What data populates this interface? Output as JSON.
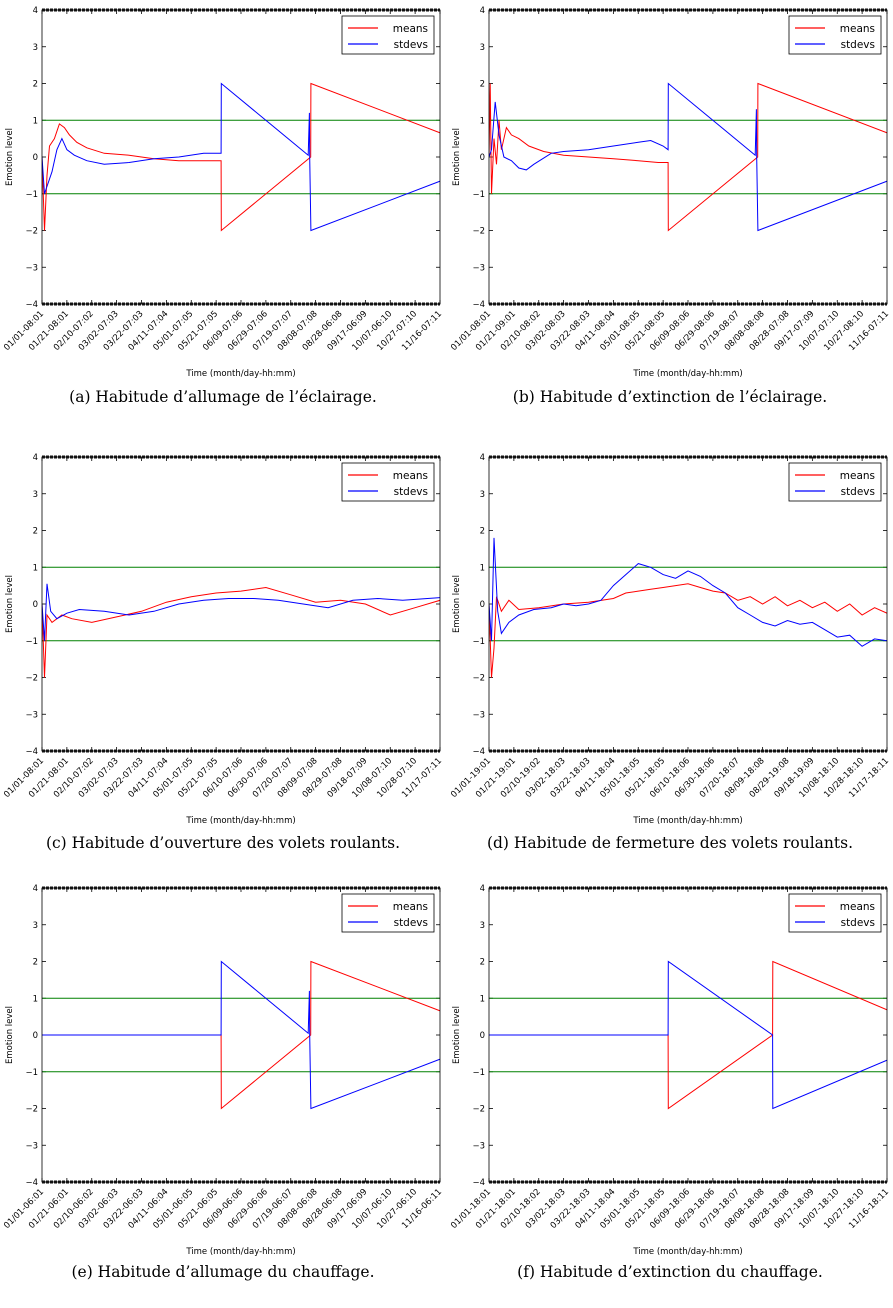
{
  "defaults": {
    "type": "line",
    "xlabel": "Time (month/day-hh:mm)",
    "ylabel": "Emotion level",
    "ylim": [
      -4,
      4
    ],
    "yticks": [
      -4,
      -3,
      -2,
      -1,
      0,
      1,
      2,
      3,
      4
    ],
    "hlines": [
      1,
      -1
    ],
    "legend": {
      "position": "top-right",
      "entries": [
        "means",
        "stdevs"
      ]
    },
    "colors": {
      "means": "#ff0000",
      "stdevs": "#0000ff",
      "hline": "#008000"
    }
  },
  "chart_data": [
    {
      "caption": "(a) Habitude d’allumage de l’éclairage.",
      "xticks": [
        "01/01-08:01",
        "01/21-08:01",
        "02/10-07:02",
        "03/02-07:03",
        "03/22-07:03",
        "04/11-07:04",
        "05/01-07:05",
        "05/21-07:05",
        "06/09-07:06",
        "06/29-07:06",
        "07/19-07:07",
        "08/08-07:08",
        "08/28-06:08",
        "09/17-06:09",
        "10/07-06:10",
        "10/27-07:10",
        "11/16-07:11"
      ],
      "series": [
        {
          "name": "means",
          "points": [
            [
              0,
              0
            ],
            [
              0.1,
              -2
            ],
            [
              0.2,
              -0.5
            ],
            [
              0.3,
              0.3
            ],
            [
              0.5,
              0.5
            ],
            [
              0.7,
              0.9
            ],
            [
              0.9,
              0.8
            ],
            [
              1.1,
              0.6
            ],
            [
              1.4,
              0.4
            ],
            [
              1.8,
              0.25
            ],
            [
              2.5,
              0.1
            ],
            [
              3.5,
              0.05
            ],
            [
              4.5,
              -0.05
            ],
            [
              5.5,
              -0.1
            ],
            [
              6.5,
              -0.1
            ],
            [
              7.2,
              -0.1
            ],
            [
              7.21,
              -2
            ],
            [
              10.8,
              0
            ],
            [
              10.81,
              2
            ],
            [
              17,
              0.4
            ]
          ]
        },
        {
          "name": "stdevs",
          "points": [
            [
              0,
              0
            ],
            [
              0.1,
              -1
            ],
            [
              0.2,
              -0.8
            ],
            [
              0.4,
              -0.4
            ],
            [
              0.6,
              0.2
            ],
            [
              0.8,
              0.5
            ],
            [
              1.0,
              0.2
            ],
            [
              1.3,
              0.05
            ],
            [
              1.8,
              -0.1
            ],
            [
              2.5,
              -0.2
            ],
            [
              3.5,
              -0.15
            ],
            [
              4.5,
              -0.05
            ],
            [
              5.5,
              0.0
            ],
            [
              6.5,
              0.1
            ],
            [
              7.2,
              0.1
            ],
            [
              7.21,
              2
            ],
            [
              10.7,
              0.05
            ],
            [
              10.75,
              1.2
            ],
            [
              10.76,
              0
            ],
            [
              10.81,
              -2
            ],
            [
              17,
              -0.4
            ]
          ]
        }
      ]
    },
    {
      "caption": "(b) Habitude d’extinction de l’éclairage.",
      "xticks": [
        "01/01-08:01",
        "01/21-09:01",
        "02/10-08:02",
        "03/02-08:03",
        "03/22-08:03",
        "04/11-08:04",
        "05/01-08:05",
        "05/21-08:05",
        "06/09-08:06",
        "06/29-08:06",
        "07/19-08:07",
        "08/08-08:08",
        "08/28-07:08",
        "09/17-07:09",
        "10/07-07:10",
        "10/27-08:10",
        "11/16-07:11"
      ],
      "series": [
        {
          "name": "means",
          "points": [
            [
              0,
              0
            ],
            [
              0.05,
              2
            ],
            [
              0.1,
              -1
            ],
            [
              0.2,
              0.5
            ],
            [
              0.3,
              -0.2
            ],
            [
              0.4,
              1
            ],
            [
              0.5,
              0.2
            ],
            [
              0.7,
              0.8
            ],
            [
              0.9,
              0.6
            ],
            [
              1.2,
              0.5
            ],
            [
              1.6,
              0.3
            ],
            [
              2.2,
              0.15
            ],
            [
              3.0,
              0.05
            ],
            [
              4.0,
              0.0
            ],
            [
              5.0,
              -0.05
            ],
            [
              6.0,
              -0.1
            ],
            [
              6.8,
              -0.15
            ],
            [
              7.2,
              -0.15
            ],
            [
              7.21,
              -2
            ],
            [
              10.8,
              0
            ],
            [
              10.81,
              2
            ],
            [
              17,
              0.4
            ]
          ]
        },
        {
          "name": "stdevs",
          "points": [
            [
              0,
              0
            ],
            [
              0.1,
              0.2
            ],
            [
              0.25,
              1.5
            ],
            [
              0.4,
              0.6
            ],
            [
              0.6,
              0.0
            ],
            [
              0.9,
              -0.1
            ],
            [
              1.2,
              -0.3
            ],
            [
              1.5,
              -0.35
            ],
            [
              1.8,
              -0.2
            ],
            [
              2.5,
              0.1
            ],
            [
              3.0,
              0.15
            ],
            [
              4.0,
              0.2
            ],
            [
              5.0,
              0.3
            ],
            [
              6.0,
              0.4
            ],
            [
              6.5,
              0.45
            ],
            [
              7.0,
              0.3
            ],
            [
              7.2,
              0.2
            ],
            [
              7.21,
              2
            ],
            [
              10.7,
              0.05
            ],
            [
              10.75,
              1.3
            ],
            [
              10.76,
              0
            ],
            [
              10.81,
              -2
            ],
            [
              17,
              -0.4
            ]
          ]
        }
      ]
    },
    {
      "caption": "(c) Habitude d’ouverture des volets roulants.",
      "xticks": [
        "01/01-08:01",
        "01/21-08:01",
        "02/10-07:02",
        "03/02-07:03",
        "03/22-07:03",
        "04/11-07:04",
        "05/01-07:05",
        "05/21-07:05",
        "06/10-07:06",
        "06/30-07:06",
        "07/20-07:07",
        "08/09-07:08",
        "08/29-07:08",
        "09/18-07:09",
        "10/08-07:10",
        "10/28-07:10",
        "11/17-07:11"
      ],
      "series": [
        {
          "name": "means",
          "points": [
            [
              0,
              0
            ],
            [
              0.1,
              -2
            ],
            [
              0.2,
              -0.3
            ],
            [
              0.4,
              -0.5
            ],
            [
              0.8,
              -0.3
            ],
            [
              1.2,
              -0.4
            ],
            [
              2,
              -0.5
            ],
            [
              3,
              -0.35
            ],
            [
              4,
              -0.2
            ],
            [
              5,
              0.05
            ],
            [
              6,
              0.2
            ],
            [
              7,
              0.3
            ],
            [
              8,
              0.35
            ],
            [
              9,
              0.45
            ],
            [
              10,
              0.25
            ],
            [
              11,
              0.05
            ],
            [
              12,
              0.1
            ],
            [
              13,
              0.0
            ],
            [
              14,
              -0.3
            ],
            [
              15,
              -0.1
            ],
            [
              16,
              0.1
            ],
            [
              17,
              0.2
            ]
          ]
        },
        {
          "name": "stdevs",
          "points": [
            [
              0,
              0
            ],
            [
              0.1,
              -1
            ],
            [
              0.2,
              0.55
            ],
            [
              0.35,
              -0.2
            ],
            [
              0.6,
              -0.4
            ],
            [
              1,
              -0.25
            ],
            [
              1.5,
              -0.15
            ],
            [
              2.5,
              -0.2
            ],
            [
              3.5,
              -0.3
            ],
            [
              4.5,
              -0.2
            ],
            [
              5.5,
              0.0
            ],
            [
              6.5,
              0.1
            ],
            [
              7.5,
              0.15
            ],
            [
              8.5,
              0.15
            ],
            [
              9.5,
              0.1
            ],
            [
              10.5,
              0.0
            ],
            [
              11.5,
              -0.1
            ],
            [
              12.5,
              0.1
            ],
            [
              13.5,
              0.15
            ],
            [
              14.5,
              0.1
            ],
            [
              15.5,
              0.15
            ],
            [
              16.5,
              0.2
            ],
            [
              17,
              0.25
            ]
          ]
        }
      ]
    },
    {
      "caption": "(d) Habitude de fermeture des volets roulants.",
      "xticks": [
        "01/01-19:01",
        "01/21-19:01",
        "02/10-19:02",
        "03/02-18:03",
        "03/22-18:03",
        "04/11-18:04",
        "05/01-18:05",
        "05/21-18:05",
        "06/10-18:06",
        "06/30-18:06",
        "07/20-18:07",
        "08/09-18:08",
        "08/29-19:08",
        "09/18-19:09",
        "10/08-18:10",
        "10/28-18:10",
        "11/17-18:11"
      ],
      "series": [
        {
          "name": "means",
          "points": [
            [
              0,
              0
            ],
            [
              0.1,
              -2
            ],
            [
              0.2,
              -1.2
            ],
            [
              0.3,
              0.2
            ],
            [
              0.5,
              -0.2
            ],
            [
              0.8,
              0.1
            ],
            [
              1.2,
              -0.15
            ],
            [
              2,
              -0.1
            ],
            [
              3,
              0.0
            ],
            [
              4,
              0.05
            ],
            [
              5,
              0.15
            ],
            [
              5.5,
              0.3
            ],
            [
              6,
              0.35
            ],
            [
              6.5,
              0.4
            ],
            [
              7,
              0.45
            ],
            [
              7.5,
              0.5
            ],
            [
              8,
              0.55
            ],
            [
              8.5,
              0.45
            ],
            [
              9,
              0.35
            ],
            [
              9.5,
              0.3
            ],
            [
              10,
              0.1
            ],
            [
              10.5,
              0.2
            ],
            [
              11,
              0.0
            ],
            [
              11.5,
              0.2
            ],
            [
              12,
              -0.05
            ],
            [
              12.5,
              0.1
            ],
            [
              13,
              -0.1
            ],
            [
              13.5,
              0.05
            ],
            [
              14,
              -0.2
            ],
            [
              14.5,
              0.0
            ],
            [
              15,
              -0.3
            ],
            [
              15.5,
              -0.1
            ],
            [
              16,
              -0.25
            ],
            [
              16.5,
              0.2
            ],
            [
              17,
              0.4
            ]
          ]
        },
        {
          "name": "stdevs",
          "points": [
            [
              0,
              0
            ],
            [
              0.1,
              -1
            ],
            [
              0.2,
              1.8
            ],
            [
              0.35,
              -0.2
            ],
            [
              0.5,
              -0.8
            ],
            [
              0.8,
              -0.5
            ],
            [
              1.2,
              -0.3
            ],
            [
              1.8,
              -0.15
            ],
            [
              2.5,
              -0.1
            ],
            [
              3,
              0.0
            ],
            [
              3.5,
              -0.05
            ],
            [
              4,
              0.0
            ],
            [
              4.5,
              0.1
            ],
            [
              5,
              0.5
            ],
            [
              5.5,
              0.8
            ],
            [
              6,
              1.1
            ],
            [
              6.5,
              1.0
            ],
            [
              7,
              0.8
            ],
            [
              7.5,
              0.7
            ],
            [
              8,
              0.9
            ],
            [
              8.5,
              0.75
            ],
            [
              9,
              0.5
            ],
            [
              9.5,
              0.3
            ],
            [
              10,
              -0.1
            ],
            [
              10.5,
              -0.3
            ],
            [
              11,
              -0.5
            ],
            [
              11.5,
              -0.6
            ],
            [
              12,
              -0.45
            ],
            [
              12.5,
              -0.55
            ],
            [
              13,
              -0.5
            ],
            [
              13.5,
              -0.7
            ],
            [
              14,
              -0.9
            ],
            [
              14.5,
              -0.85
            ],
            [
              15,
              -1.15
            ],
            [
              15.5,
              -0.95
            ],
            [
              16,
              -1.0
            ],
            [
              16.5,
              -0.95
            ],
            [
              17,
              -1.1
            ]
          ]
        }
      ]
    },
    {
      "caption": "(e) Habitude d’allumage du chauffage.",
      "xticks": [
        "01/01-06:01",
        "01/21-06:01",
        "02/10-06:02",
        "03/02-06:03",
        "03/22-06:03",
        "04/11-06:04",
        "05/01-06:05",
        "05/21-06:05",
        "06/09-06:06",
        "06/29-06:06",
        "07/19-06:07",
        "08/08-06:08",
        "08/28-06:08",
        "09/17-06:09",
        "10/07-06:10",
        "10/27-06:10",
        "11/16-06:11"
      ],
      "series": [
        {
          "name": "means",
          "points": [
            [
              0,
              0
            ],
            [
              7.2,
              0
            ],
            [
              7.21,
              -2
            ],
            [
              10.8,
              0
            ],
            [
              10.81,
              2
            ],
            [
              17,
              0.4
            ]
          ]
        },
        {
          "name": "stdevs",
          "points": [
            [
              0,
              0
            ],
            [
              7.2,
              0
            ],
            [
              7.21,
              2
            ],
            [
              10.7,
              0.05
            ],
            [
              10.75,
              1.2
            ],
            [
              10.76,
              0
            ],
            [
              10.81,
              -2
            ],
            [
              17,
              -0.4
            ]
          ]
        }
      ]
    },
    {
      "caption": "(f) Habitude d’extinction du chauffage.",
      "xticks": [
        "01/01-18:01",
        "01/21-18:01",
        "02/10-18:02",
        "03/02-18:03",
        "03/22-18:03",
        "04/11-18:04",
        "05/01-18:05",
        "05/21-18:05",
        "06/09-18:06",
        "06/29-18:06",
        "07/19-18:07",
        "08/08-18:08",
        "08/28-18:08",
        "09/17-18:09",
        "10/07-18:10",
        "10/27-18:10",
        "11/16-18:11"
      ],
      "series": [
        {
          "name": "means",
          "points": [
            [
              0,
              0
            ],
            [
              7.2,
              0
            ],
            [
              7.21,
              -2
            ],
            [
              11.4,
              0
            ],
            [
              11.41,
              2
            ],
            [
              17,
              0.4
            ]
          ]
        },
        {
          "name": "stdevs",
          "points": [
            [
              0,
              0
            ],
            [
              7.2,
              0
            ],
            [
              7.21,
              2
            ],
            [
              11.4,
              0
            ],
            [
              11.41,
              -2
            ],
            [
              17,
              -0.4
            ]
          ]
        }
      ]
    }
  ]
}
